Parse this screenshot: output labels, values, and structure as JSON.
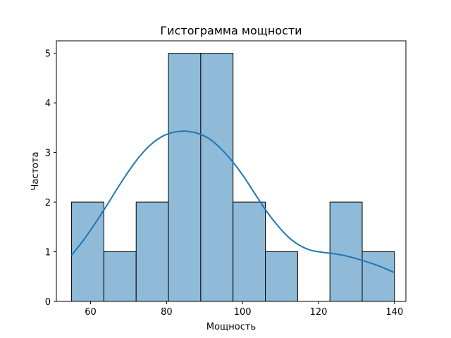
{
  "chart_data": {
    "type": "histogram",
    "title": "Гистограмма мощности",
    "xlabel": "Мощность",
    "ylabel": "Частота",
    "xlim": [
      51,
      143
    ],
    "ylim": [
      0,
      5.25
    ],
    "xticks": [
      60,
      80,
      100,
      120,
      140
    ],
    "yticks": [
      0,
      1,
      2,
      3,
      4,
      5
    ],
    "bins": [
      {
        "start": 55.0,
        "end": 63.5,
        "count": 2
      },
      {
        "start": 63.5,
        "end": 72.0,
        "count": 1
      },
      {
        "start": 72.0,
        "end": 80.5,
        "count": 2
      },
      {
        "start": 80.5,
        "end": 89.0,
        "count": 5
      },
      {
        "start": 89.0,
        "end": 97.5,
        "count": 5
      },
      {
        "start": 97.5,
        "end": 106.0,
        "count": 2
      },
      {
        "start": 106.0,
        "end": 114.5,
        "count": 1
      },
      {
        "start": 114.5,
        "end": 123.0,
        "count": 0
      },
      {
        "start": 123.0,
        "end": 131.5,
        "count": 2
      },
      {
        "start": 131.5,
        "end": 140.0,
        "count": 1
      }
    ],
    "kde": {
      "x": [
        55,
        58,
        61,
        64,
        67,
        70,
        73,
        76,
        79,
        82,
        85,
        86,
        88,
        91,
        94,
        97,
        100,
        103,
        106,
        109,
        112,
        115,
        118,
        121,
        124,
        127,
        130,
        133,
        136,
        140
      ],
      "y": [
        0.93,
        1.22,
        1.55,
        1.9,
        2.27,
        2.62,
        2.93,
        3.17,
        3.33,
        3.41,
        3.43,
        3.42,
        3.39,
        3.29,
        3.1,
        2.85,
        2.55,
        2.2,
        1.85,
        1.55,
        1.3,
        1.13,
        1.03,
        0.99,
        0.96,
        0.92,
        0.86,
        0.79,
        0.71,
        0.58
      ]
    },
    "colors": {
      "bar_fill": "#8fbbd9",
      "bar_edge": "#000000",
      "kde_line": "#1f77b4"
    }
  }
}
